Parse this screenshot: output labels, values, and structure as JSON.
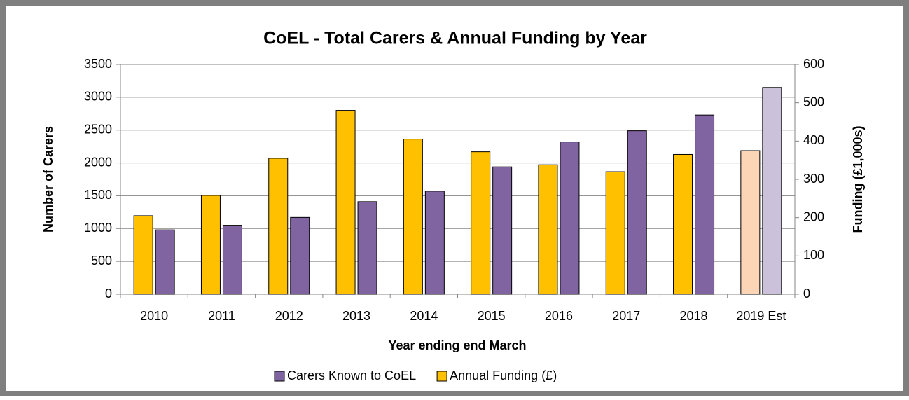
{
  "chart_data": {
    "type": "bar",
    "title": "CoEL - Total Carers  & Annual Funding by Year",
    "x_label": "Year ending end March",
    "y_label": "Number of Carers",
    "y2_label": "Funding (£1,000s)",
    "categories": [
      "2010",
      "2011",
      "2012",
      "2013",
      "2014",
      "2015",
      "2016",
      "2017",
      "2018",
      "2019 Est"
    ],
    "series": [
      {
        "name": "Annual Funding (£)",
        "color": "#FFC000",
        "axis": "y2",
        "colors": [
          "#FFC000",
          "#FFC000",
          "#FFC000",
          "#FFC000",
          "#FFC000",
          "#FFC000",
          "#FFC000",
          "#FFC000",
          "#FFC000",
          "#FBD5B5"
        ],
        "values": [
          205,
          258,
          355,
          480,
          405,
          372,
          338,
          320,
          365,
          375
        ]
      },
      {
        "name": "Carers Known to CoEL",
        "color": "#8064A2",
        "axis": "y",
        "colors": [
          "#8064A2",
          "#8064A2",
          "#8064A2",
          "#8064A2",
          "#8064A2",
          "#8064A2",
          "#8064A2",
          "#8064A2",
          "#8064A2",
          "#CCC1DA"
        ],
        "values": [
          980,
          1050,
          1170,
          1410,
          1570,
          1940,
          2320,
          2490,
          2730,
          3150
        ]
      }
    ],
    "ylim": [
      0,
      3500
    ],
    "yticks": [
      0,
      500,
      1000,
      1500,
      2000,
      2500,
      3000,
      3500
    ],
    "y2lim": [
      0,
      600
    ],
    "y2ticks": [
      0,
      100,
      200,
      300,
      400,
      500,
      600
    ],
    "grid": true,
    "legend": "bottom"
  }
}
